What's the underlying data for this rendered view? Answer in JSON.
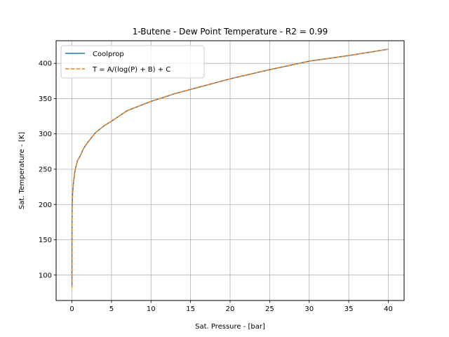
{
  "chart_data": {
    "type": "line",
    "title": "1-Butene - Dew Point Temperature - R2 = 0.99",
    "xlabel": "Sat. Pressure - [bar]",
    "ylabel": "Sat. Temperature - [K]",
    "xlim": [
      -2,
      42
    ],
    "ylim": [
      64,
      432
    ],
    "xticks": [
      0,
      5,
      10,
      15,
      20,
      25,
      30,
      35,
      40
    ],
    "yticks": [
      100,
      150,
      200,
      250,
      300,
      350,
      400
    ],
    "xtick_labels": [
      "0",
      "5",
      "10",
      "15",
      "20",
      "25",
      "30",
      "35",
      "40"
    ],
    "ytick_labels": [
      "100",
      "150",
      "200",
      "250",
      "300",
      "350",
      "400"
    ],
    "grid": true,
    "legend_position": "upper-left",
    "series": [
      {
        "name": "Coolprop",
        "color": "#1f77b4",
        "style": "solid",
        "x": [
          0.0,
          0.0005,
          0.003,
          0.01,
          0.03,
          0.08,
          0.2,
          0.4,
          0.7,
          1.0,
          1.5,
          2.0,
          3.0,
          4.0,
          5.0,
          7.0,
          10.0,
          13.0,
          16.0,
          20.0,
          25.0,
          30.0,
          35.0,
          40.0
        ],
        "y": [
          85,
          120,
          150,
          175,
          200,
          215,
          232,
          249,
          262,
          268,
          280,
          288,
          302,
          311,
          318,
          333,
          346,
          357,
          366,
          378,
          391,
          403,
          411,
          420
        ]
      },
      {
        "name": "T = A/(log(P) + B) + C",
        "color": "#ff7f0e",
        "style": "dashed",
        "x": [
          0.0,
          0.0005,
          0.003,
          0.01,
          0.03,
          0.08,
          0.2,
          0.4,
          0.7,
          1.0,
          1.5,
          2.0,
          3.0,
          4.0,
          5.0,
          7.0,
          10.0,
          13.0,
          16.0,
          20.0,
          25.0,
          30.0,
          35.0,
          40.0
        ],
        "y": [
          82,
          118,
          149,
          175,
          200,
          215,
          232,
          249,
          262,
          268,
          280,
          288,
          302,
          311,
          318,
          333,
          346,
          357,
          366,
          378,
          391,
          403,
          411,
          420
        ]
      }
    ]
  }
}
